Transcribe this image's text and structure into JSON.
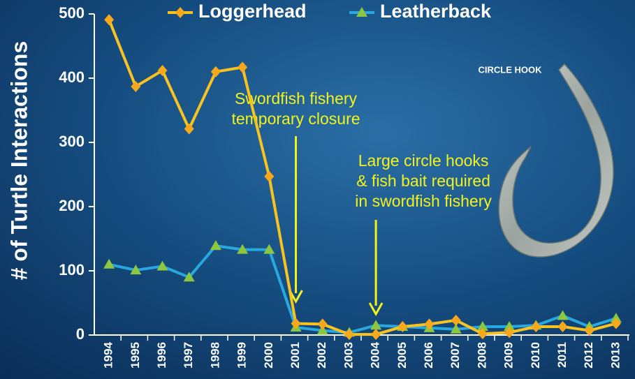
{
  "chart_data": {
    "type": "line",
    "y_label": "# of Turtle Interactions",
    "categories": [
      "1994",
      "1995",
      "1996",
      "1997",
      "1998",
      "1999",
      "2000",
      "2001",
      "2002",
      "2003",
      "2004",
      "2005",
      "2006",
      "2007",
      "2008",
      "2009",
      "2010",
      "2011",
      "2012",
      "2013"
    ],
    "series": [
      {
        "name": "Loggerhead",
        "color": "#f7a81b",
        "line_color": "#f9c31f",
        "marker": "diamond",
        "values": [
          491,
          387,
          412,
          321,
          410,
          417,
          247,
          18,
          17,
          1,
          1,
          13,
          17,
          23,
          2,
          4,
          13,
          13,
          7,
          18
        ]
      },
      {
        "name": "Leatherback",
        "color": "#8dc63f",
        "line_color": "#29a8e0",
        "marker": "triangle",
        "values": [
          110,
          101,
          107,
          90,
          139,
          133,
          133,
          12,
          7,
          4,
          15,
          13,
          11,
          9,
          13,
          13,
          15,
          30,
          13,
          26
        ]
      }
    ],
    "ylim": [
      0,
      500
    ],
    "yticks": [
      0,
      100,
      200,
      300,
      400,
      500
    ],
    "legend": "top",
    "annotations": [
      {
        "lines": [
          "Swordfish fishery",
          "temporary closure"
        ]
      },
      {
        "lines": [
          "Large circle hooks",
          "& fish bait required",
          "in swordfish fishery"
        ]
      }
    ],
    "image_label": "CIRCLE HOOK"
  }
}
